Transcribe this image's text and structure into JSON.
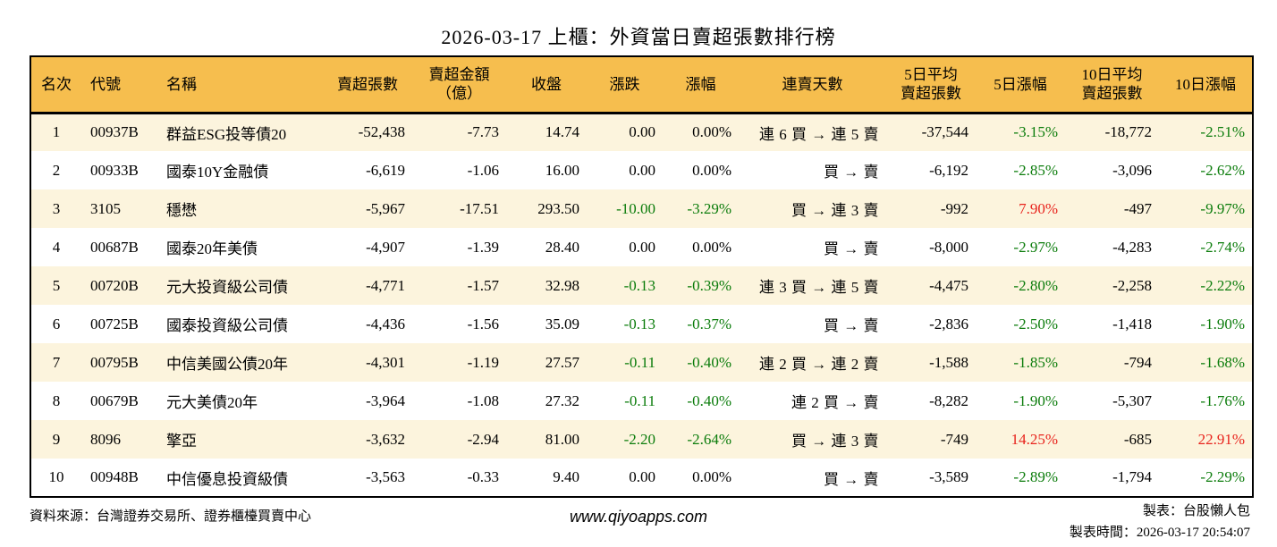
{
  "title": "2026-03-17 上櫃：外資當日賣超張數排行榜",
  "table": {
    "headers": [
      "名次",
      "代號",
      "名稱",
      "賣超張數",
      "賣超金額\n（億）",
      "收盤",
      "漲跌",
      "漲幅",
      "連賣天數",
      "5日平均\n賣超張數",
      "5日漲幅",
      "10日平均\n賣超張數",
      "10日漲幅"
    ],
    "rows": [
      {
        "rank": "1",
        "code": "00937B",
        "name": "群益ESG投等債20",
        "vol": "-52,438",
        "amt": "-7.73",
        "close": "14.74",
        "chg": "0.00",
        "chg_c": "",
        "chg_pct": "0.00%",
        "chg_pct_c": "",
        "streak": "連 6 買 → 連 5 賣",
        "avg5": "-37,544",
        "pct5": "-3.15%",
        "pct5_c": "g",
        "avg10": "-18,772",
        "pct10": "-2.51%",
        "pct10_c": "g"
      },
      {
        "rank": "2",
        "code": "00933B",
        "name": "國泰10Y金融債",
        "vol": "-6,619",
        "amt": "-1.06",
        "close": "16.00",
        "chg": "0.00",
        "chg_c": "",
        "chg_pct": "0.00%",
        "chg_pct_c": "",
        "streak": "買 → 賣",
        "avg5": "-6,192",
        "pct5": "-2.85%",
        "pct5_c": "g",
        "avg10": "-3,096",
        "pct10": "-2.62%",
        "pct10_c": "g"
      },
      {
        "rank": "3",
        "code": "3105",
        "name": "穩懋",
        "vol": "-5,967",
        "amt": "-17.51",
        "close": "293.50",
        "chg": "-10.00",
        "chg_c": "g",
        "chg_pct": "-3.29%",
        "chg_pct_c": "g",
        "streak": "買 → 連 3 賣",
        "avg5": "-992",
        "pct5": "7.90%",
        "pct5_c": "r",
        "avg10": "-497",
        "pct10": "-9.97%",
        "pct10_c": "g"
      },
      {
        "rank": "4",
        "code": "00687B",
        "name": "國泰20年美債",
        "vol": "-4,907",
        "amt": "-1.39",
        "close": "28.40",
        "chg": "0.00",
        "chg_c": "",
        "chg_pct": "0.00%",
        "chg_pct_c": "",
        "streak": "買 → 賣",
        "avg5": "-8,000",
        "pct5": "-2.97%",
        "pct5_c": "g",
        "avg10": "-4,283",
        "pct10": "-2.74%",
        "pct10_c": "g"
      },
      {
        "rank": "5",
        "code": "00720B",
        "name": "元大投資級公司債",
        "vol": "-4,771",
        "amt": "-1.57",
        "close": "32.98",
        "chg": "-0.13",
        "chg_c": "g",
        "chg_pct": "-0.39%",
        "chg_pct_c": "g",
        "streak": "連 3 買 → 連 5 賣",
        "avg5": "-4,475",
        "pct5": "-2.80%",
        "pct5_c": "g",
        "avg10": "-2,258",
        "pct10": "-2.22%",
        "pct10_c": "g"
      },
      {
        "rank": "6",
        "code": "00725B",
        "name": "國泰投資級公司債",
        "vol": "-4,436",
        "amt": "-1.56",
        "close": "35.09",
        "chg": "-0.13",
        "chg_c": "g",
        "chg_pct": "-0.37%",
        "chg_pct_c": "g",
        "streak": "買 → 賣",
        "avg5": "-2,836",
        "pct5": "-2.50%",
        "pct5_c": "g",
        "avg10": "-1,418",
        "pct10": "-1.90%",
        "pct10_c": "g"
      },
      {
        "rank": "7",
        "code": "00795B",
        "name": "中信美國公債20年",
        "vol": "-4,301",
        "amt": "-1.19",
        "close": "27.57",
        "chg": "-0.11",
        "chg_c": "g",
        "chg_pct": "-0.40%",
        "chg_pct_c": "g",
        "streak": "連 2 買 → 連 2 賣",
        "avg5": "-1,588",
        "pct5": "-1.85%",
        "pct5_c": "g",
        "avg10": "-794",
        "pct10": "-1.68%",
        "pct10_c": "g"
      },
      {
        "rank": "8",
        "code": "00679B",
        "name": "元大美債20年",
        "vol": "-3,964",
        "amt": "-1.08",
        "close": "27.32",
        "chg": "-0.11",
        "chg_c": "g",
        "chg_pct": "-0.40%",
        "chg_pct_c": "g",
        "streak": "連 2 買 → 賣",
        "avg5": "-8,282",
        "pct5": "-1.90%",
        "pct5_c": "g",
        "avg10": "-5,307",
        "pct10": "-1.76%",
        "pct10_c": "g"
      },
      {
        "rank": "9",
        "code": "8096",
        "name": "擎亞",
        "vol": "-3,632",
        "amt": "-2.94",
        "close": "81.00",
        "chg": "-2.20",
        "chg_c": "g",
        "chg_pct": "-2.64%",
        "chg_pct_c": "g",
        "streak": "買 → 連 3 賣",
        "avg5": "-749",
        "pct5": "14.25%",
        "pct5_c": "r",
        "avg10": "-685",
        "pct10": "22.91%",
        "pct10_c": "r"
      },
      {
        "rank": "10",
        "code": "00948B",
        "name": "中信優息投資級債",
        "vol": "-3,563",
        "amt": "-0.33",
        "close": "9.40",
        "chg": "0.00",
        "chg_c": "",
        "chg_pct": "0.00%",
        "chg_pct_c": "",
        "streak": "買 → 賣",
        "avg5": "-3,589",
        "pct5": "-2.89%",
        "pct5_c": "g",
        "avg10": "-1,794",
        "pct10": "-2.29%",
        "pct10_c": "g"
      }
    ]
  },
  "footer": {
    "source": "資料來源：台灣證券交易所、證券櫃檯買賣中心",
    "website": "www.qiyoapps.com",
    "maker": "製表：台股懶人包",
    "made_time": "製表時間：2026-03-17 20:54:07"
  },
  "colors": {
    "header_bg": "#F6BE4E",
    "row_alt_bg": "#FCF4DD",
    "up_red": "#E8231C",
    "down_green": "#0B7C0B"
  }
}
